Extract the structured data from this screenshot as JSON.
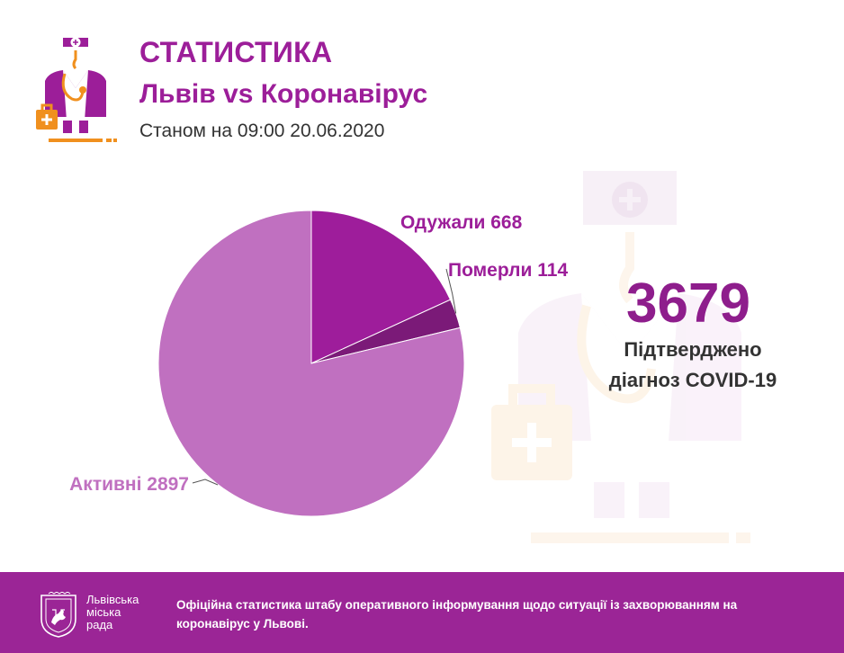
{
  "header": {
    "title": "СТАТИСТИКА",
    "subtitle": "Львів vs Коронавірус",
    "date_line": "Станом на 09:00 20.06.2020"
  },
  "summary": {
    "total": "3679",
    "label_line1": "Підтверджено",
    "label_line2": "діагноз COVID-19"
  },
  "footer": {
    "org_line1": "Львівська",
    "org_line2": "міська",
    "org_line3": "рада",
    "text": "Офіційна статистика штабу оперативного інформування щодо ситуації із захворюванням на коронавірус у Львові."
  },
  "icons": {
    "logo": "doctor-icon",
    "watermark": "doctor-watermark-icon",
    "crest": "lviv-crest-icon"
  },
  "colors": {
    "brand": "#9c1e99",
    "recovered": "#9e1d9b",
    "deaths": "#7b1a78",
    "active": "#c070c0",
    "accent_orange": "#f0901e",
    "footer_bg": "#9b2596"
  },
  "chart_data": {
    "type": "pie",
    "title": "",
    "slices": [
      {
        "label": "Одужали 668",
        "value": 668,
        "color": "#9e1d9b"
      },
      {
        "label": "Померли 114",
        "value": 114,
        "color": "#7b1a78"
      },
      {
        "label": "Активні 2897",
        "value": 2897,
        "color": "#c070c0"
      }
    ],
    "total": 3679
  }
}
